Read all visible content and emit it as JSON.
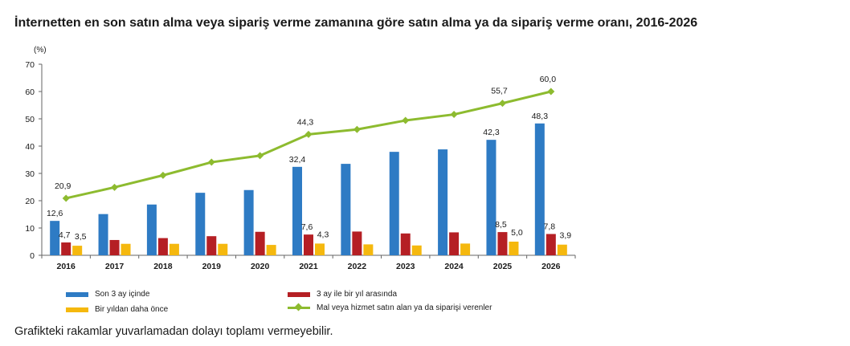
{
  "title": "İnternetten en son satın alma veya sipariş verme zamanına göre satın alma ya da sipariş verme oranı, 2016-2026",
  "note": "Grafikteki rakamlar yuvarlamadan dolayı toplamı vermeyebilir.",
  "colors": {
    "blue": "#2e7bc4",
    "red": "#b51f24",
    "yellow": "#f5b80e",
    "green": "#8dbb2f",
    "axis": "#666666"
  },
  "chart_data": {
    "type": "bar",
    "unit_label": "(%)",
    "categories": [
      "2016",
      "2017",
      "2018",
      "2019",
      "2020",
      "2021",
      "2022",
      "2023",
      "2024",
      "2025",
      "2026"
    ],
    "ylim": [
      0,
      70
    ],
    "yticks": [
      0,
      10,
      20,
      30,
      40,
      50,
      60,
      70
    ],
    "grid": false,
    "legend_position": "bottom",
    "series": [
      {
        "name": "Son 3 ay içinde",
        "type": "bar",
        "color": "#2e7bc4",
        "values": [
          12.6,
          15.1,
          18.6,
          22.9,
          23.9,
          32.4,
          33.5,
          37.9,
          38.8,
          42.3,
          48.3
        ],
        "labels": [
          "12,6",
          null,
          null,
          null,
          null,
          "32,4",
          null,
          null,
          null,
          "42,3",
          "48,3"
        ]
      },
      {
        "name": "3 ay ile bir yıl arasında",
        "type": "bar",
        "color": "#b51f24",
        "values": [
          4.7,
          5.6,
          6.3,
          7.0,
          8.6,
          7.6,
          8.7,
          8.0,
          8.4,
          8.5,
          7.8
        ],
        "labels": [
          "4,7",
          null,
          null,
          null,
          null,
          "7,6",
          null,
          null,
          null,
          "8,5",
          "7,8"
        ]
      },
      {
        "name": "Bir yıldan daha önce",
        "type": "bar",
        "color": "#f5b80e",
        "values": [
          3.5,
          4.2,
          4.2,
          4.2,
          3.8,
          4.3,
          4.0,
          3.6,
          4.3,
          5.0,
          3.9
        ],
        "labels": [
          "3,5",
          null,
          null,
          null,
          null,
          "4,3",
          null,
          null,
          null,
          "5,0",
          "3,9"
        ]
      },
      {
        "name": "Mal veya hizmet satın alan ya da siparişi verenler",
        "type": "line",
        "color": "#8dbb2f",
        "values": [
          20.9,
          24.9,
          29.3,
          34.1,
          36.5,
          44.3,
          46.1,
          49.4,
          51.6,
          55.7,
          60.0
        ],
        "labels": [
          "20,9",
          null,
          null,
          null,
          null,
          "44,3",
          null,
          null,
          null,
          "55,7",
          "60,0"
        ]
      }
    ]
  }
}
